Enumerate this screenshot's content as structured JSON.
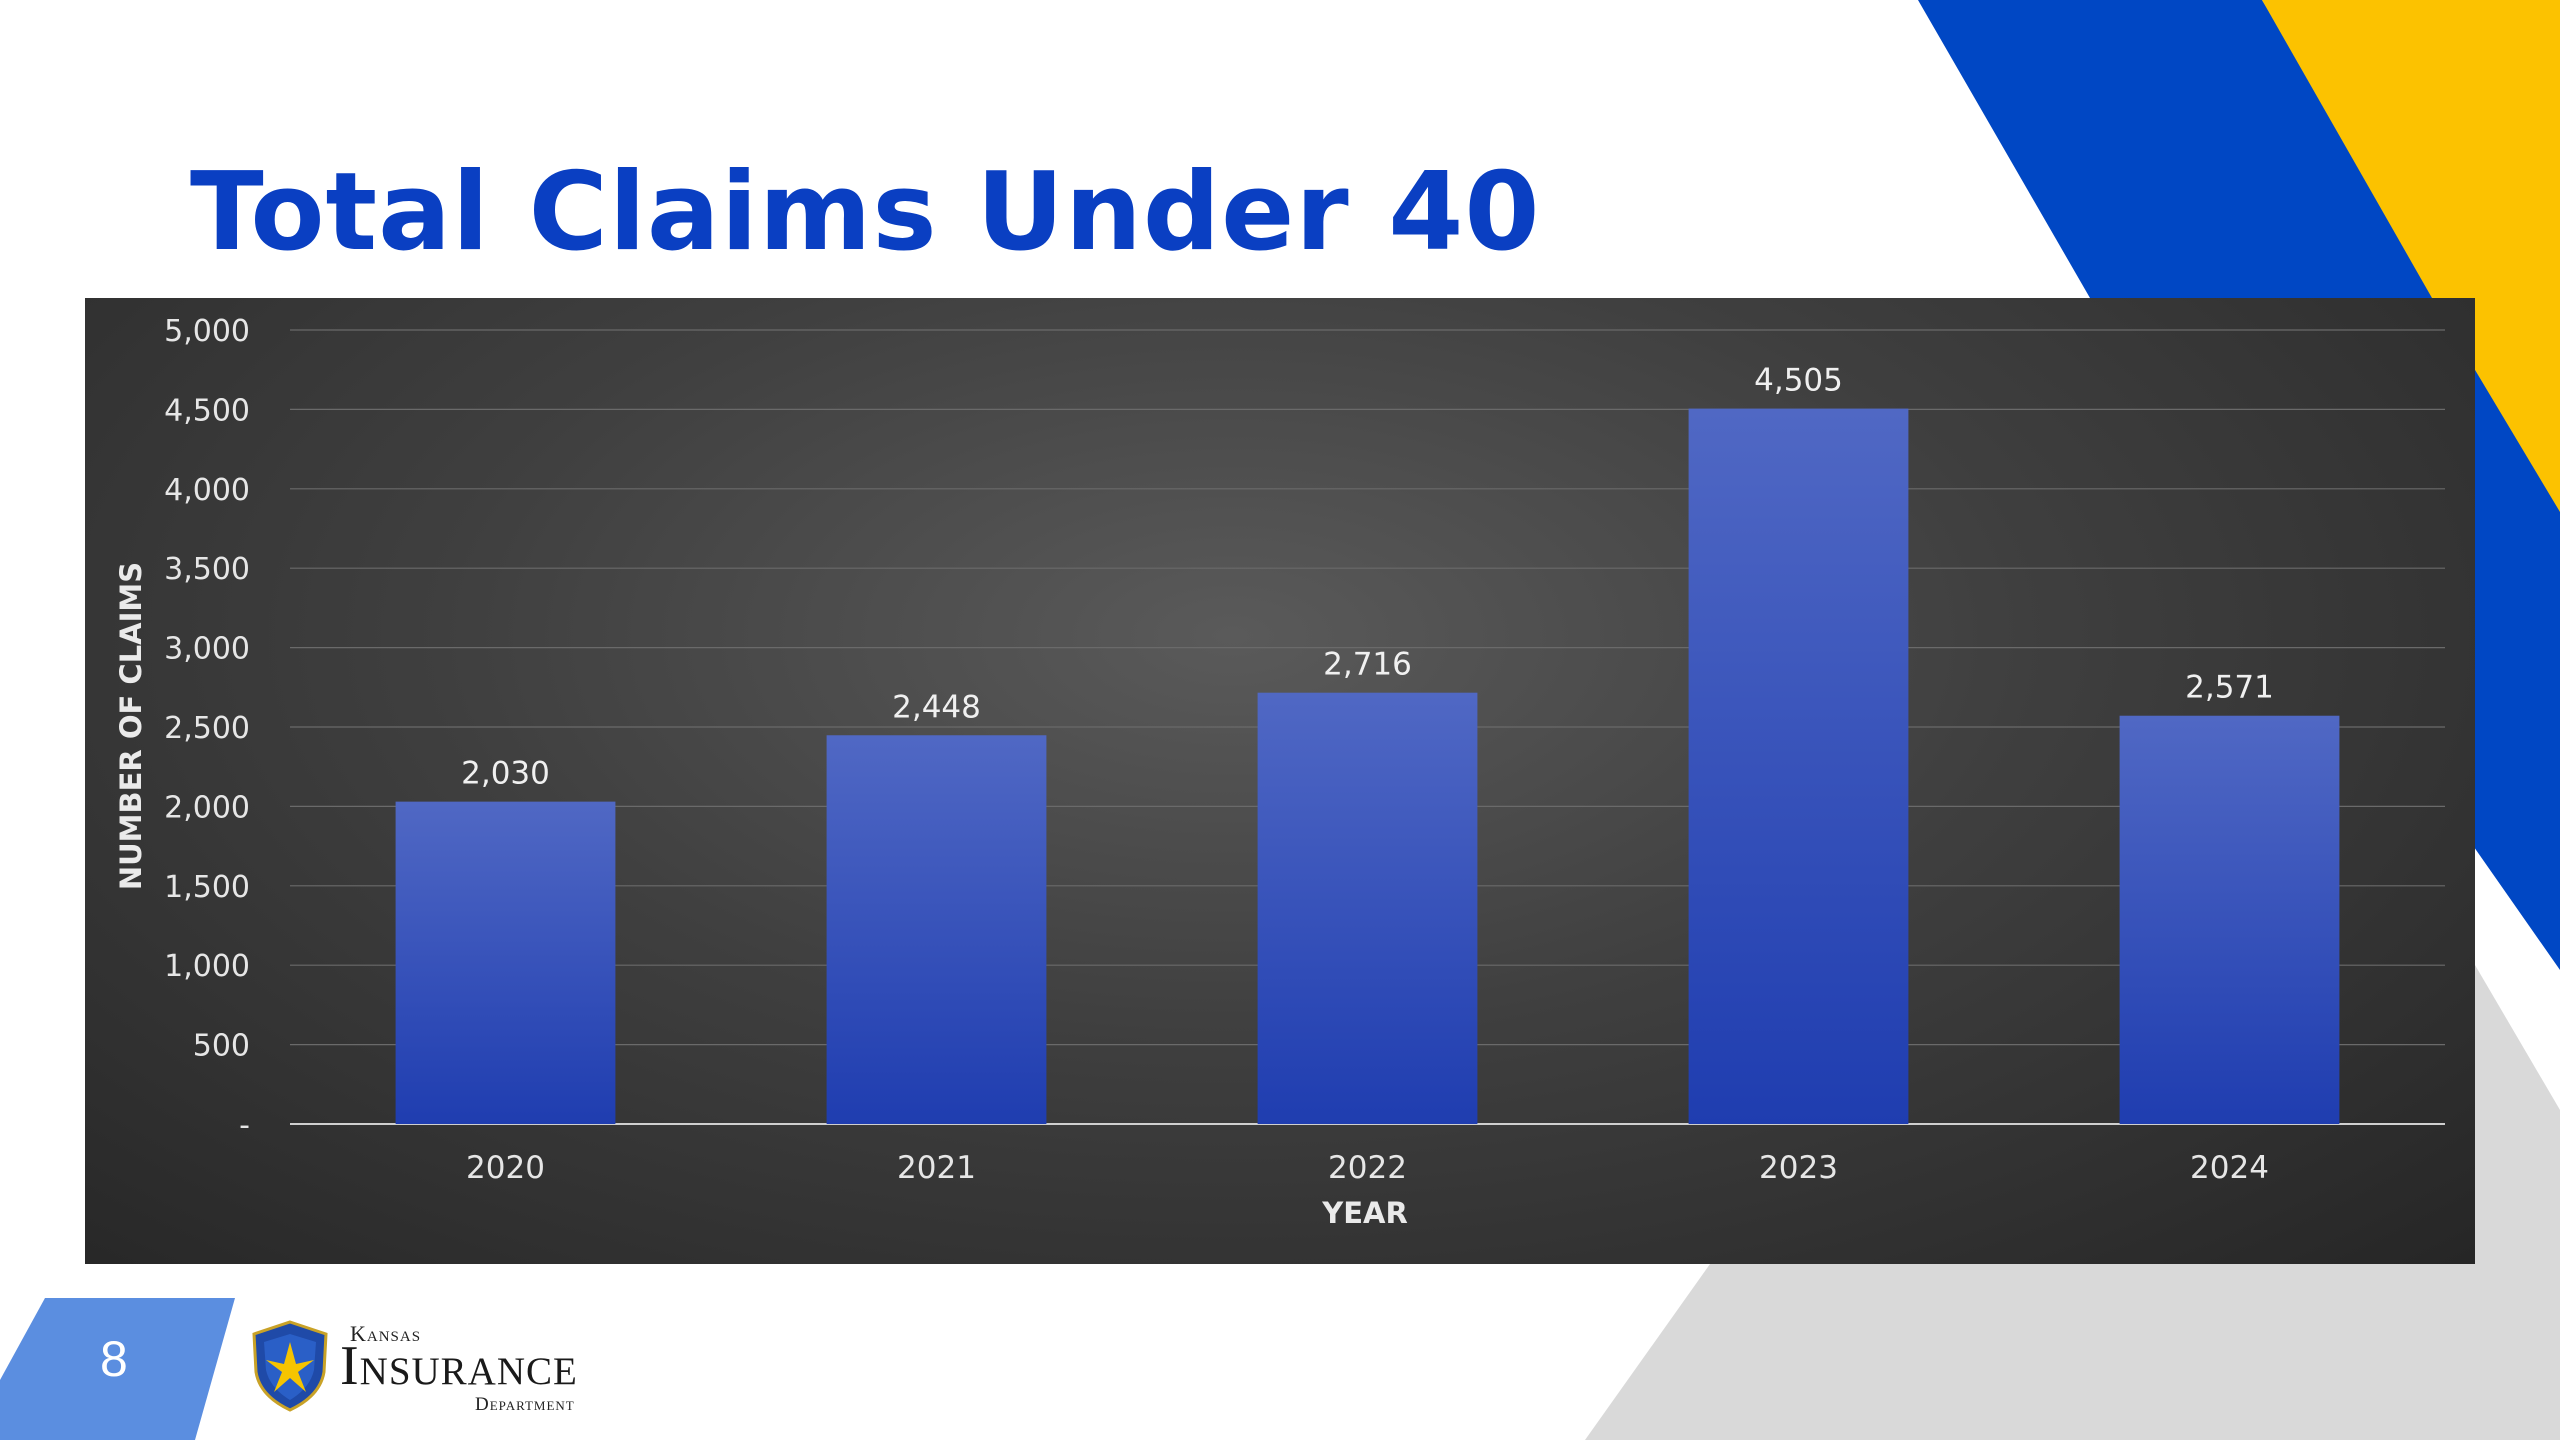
{
  "slide": {
    "title": "Total Claims Under 40",
    "page_number": "8",
    "logo": {
      "top": "Kansas",
      "main": "Insurance",
      "bottom": "Department"
    },
    "colors": {
      "title": "#0a3fc2",
      "brand_blue": "#0047c4",
      "brand_yellow": "#fcc200",
      "footer_blue": "#5b8ee0"
    }
  },
  "chart_data": {
    "type": "bar",
    "categories": [
      "2020",
      "2021",
      "2022",
      "2023",
      "2024"
    ],
    "values": [
      2030,
      2448,
      2716,
      4505,
      2571
    ],
    "data_labels": [
      "2,030",
      "2,448",
      "2,716",
      "4,505",
      "2,571"
    ],
    "xlabel": "YEAR",
    "ylabel": "NUMBER OF CLAIMS",
    "ylim": [
      0,
      5000
    ],
    "yticks": [
      0,
      500,
      1000,
      1500,
      2000,
      2500,
      3000,
      3500,
      4000,
      4500,
      5000
    ],
    "ytick_labels": [
      "-",
      "500",
      "1,000",
      "1,500",
      "2,000",
      "2,500",
      "3,000",
      "3,500",
      "4,000",
      "4,500",
      "5,000"
    ],
    "grid": true,
    "legend": "none",
    "bar_color_top": "#5068c4",
    "bar_color_bottom": "#1f3db0"
  }
}
